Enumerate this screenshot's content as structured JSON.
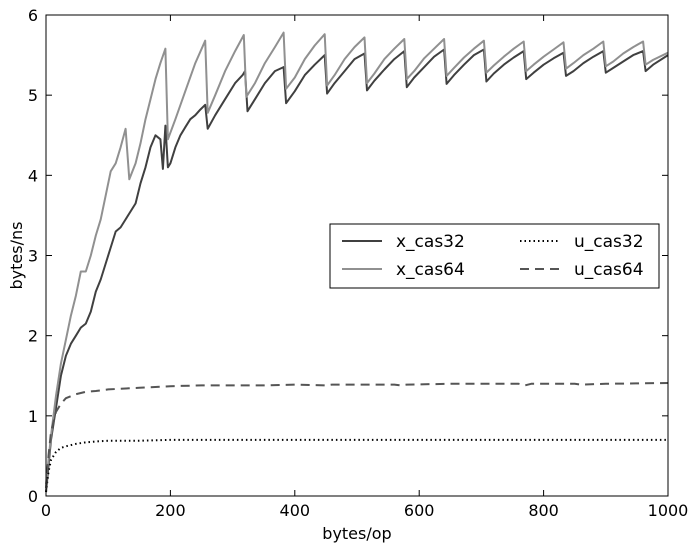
{
  "chart_data": {
    "type": "line",
    "title": "",
    "xlabel": "bytes/op",
    "ylabel": "bytes/ns",
    "xlim": [
      0,
      1000
    ],
    "ylim": [
      0,
      6
    ],
    "x_ticks": [
      "0",
      "200",
      "400",
      "600",
      "800",
      "1000"
    ],
    "y_ticks": [
      "0",
      "1",
      "2",
      "3",
      "4",
      "5",
      "6"
    ],
    "grid": false,
    "legend": {
      "placement": "center-right",
      "columns": 2
    },
    "series": [
      {
        "name": "x_cas32",
        "color": "#404040",
        "style": "solid",
        "points": [
          [
            0,
            0.05
          ],
          [
            8,
            0.7
          ],
          [
            16,
            1.1
          ],
          [
            24,
            1.5
          ],
          [
            32,
            1.75
          ],
          [
            40,
            1.9
          ],
          [
            48,
            2.0
          ],
          [
            56,
            2.1
          ],
          [
            64,
            2.15
          ],
          [
            72,
            2.3
          ],
          [
            80,
            2.55
          ],
          [
            88,
            2.7
          ],
          [
            96,
            2.9
          ],
          [
            104,
            3.1
          ],
          [
            112,
            3.3
          ],
          [
            120,
            3.35
          ],
          [
            128,
            3.45
          ],
          [
            136,
            3.55
          ],
          [
            144,
            3.65
          ],
          [
            152,
            3.9
          ],
          [
            160,
            4.1
          ],
          [
            168,
            4.35
          ],
          [
            176,
            4.5
          ],
          [
            184,
            4.45
          ],
          [
            188,
            4.08
          ],
          [
            192,
            4.62
          ],
          [
            196,
            4.1
          ],
          [
            200,
            4.15
          ],
          [
            208,
            4.35
          ],
          [
            216,
            4.5
          ],
          [
            224,
            4.6
          ],
          [
            232,
            4.7
          ],
          [
            240,
            4.75
          ],
          [
            248,
            4.82
          ],
          [
            256,
            4.88
          ],
          [
            260,
            4.58
          ],
          [
            272,
            4.75
          ],
          [
            288,
            4.95
          ],
          [
            304,
            5.15
          ],
          [
            316,
            5.25
          ],
          [
            320,
            5.3
          ],
          [
            324,
            4.8
          ],
          [
            336,
            4.95
          ],
          [
            352,
            5.15
          ],
          [
            368,
            5.3
          ],
          [
            382,
            5.35
          ],
          [
            386,
            4.9
          ],
          [
            400,
            5.05
          ],
          [
            416,
            5.25
          ],
          [
            432,
            5.38
          ],
          [
            448,
            5.5
          ],
          [
            452,
            5.02
          ],
          [
            464,
            5.15
          ],
          [
            480,
            5.3
          ],
          [
            496,
            5.45
          ],
          [
            512,
            5.52
          ],
          [
            516,
            5.06
          ],
          [
            528,
            5.18
          ],
          [
            544,
            5.32
          ],
          [
            560,
            5.45
          ],
          [
            576,
            5.55
          ],
          [
            580,
            5.1
          ],
          [
            592,
            5.22
          ],
          [
            608,
            5.35
          ],
          [
            624,
            5.48
          ],
          [
            640,
            5.57
          ],
          [
            644,
            5.14
          ],
          [
            656,
            5.25
          ],
          [
            672,
            5.38
          ],
          [
            688,
            5.5
          ],
          [
            704,
            5.57
          ],
          [
            708,
            5.17
          ],
          [
            720,
            5.27
          ],
          [
            736,
            5.38
          ],
          [
            752,
            5.47
          ],
          [
            768,
            5.55
          ],
          [
            772,
            5.2
          ],
          [
            784,
            5.28
          ],
          [
            800,
            5.38
          ],
          [
            816,
            5.46
          ],
          [
            832,
            5.53
          ],
          [
            836,
            5.24
          ],
          [
            848,
            5.3
          ],
          [
            864,
            5.4
          ],
          [
            880,
            5.48
          ],
          [
            896,
            5.55
          ],
          [
            900,
            5.28
          ],
          [
            912,
            5.34
          ],
          [
            928,
            5.42
          ],
          [
            944,
            5.5
          ],
          [
            960,
            5.55
          ],
          [
            964,
            5.3
          ],
          [
            976,
            5.38
          ],
          [
            1000,
            5.5
          ]
        ]
      },
      {
        "name": "x_cas64",
        "color": "#909090",
        "style": "solid",
        "points": [
          [
            0,
            0.15
          ],
          [
            8,
            0.75
          ],
          [
            16,
            1.25
          ],
          [
            24,
            1.65
          ],
          [
            32,
            1.95
          ],
          [
            40,
            2.25
          ],
          [
            48,
            2.5
          ],
          [
            56,
            2.8
          ],
          [
            64,
            2.8
          ],
          [
            72,
            3.0
          ],
          [
            80,
            3.25
          ],
          [
            88,
            3.45
          ],
          [
            96,
            3.75
          ],
          [
            104,
            4.05
          ],
          [
            112,
            4.15
          ],
          [
            120,
            4.35
          ],
          [
            128,
            4.58
          ],
          [
            134,
            3.95
          ],
          [
            144,
            4.15
          ],
          [
            152,
            4.4
          ],
          [
            160,
            4.7
          ],
          [
            168,
            4.95
          ],
          [
            176,
            5.2
          ],
          [
            184,
            5.4
          ],
          [
            192,
            5.58
          ],
          [
            196,
            4.45
          ],
          [
            208,
            4.7
          ],
          [
            224,
            5.05
          ],
          [
            240,
            5.4
          ],
          [
            256,
            5.68
          ],
          [
            260,
            4.78
          ],
          [
            272,
            5.0
          ],
          [
            288,
            5.3
          ],
          [
            304,
            5.55
          ],
          [
            318,
            5.75
          ],
          [
            322,
            4.98
          ],
          [
            336,
            5.15
          ],
          [
            352,
            5.4
          ],
          [
            368,
            5.6
          ],
          [
            382,
            5.78
          ],
          [
            386,
            5.08
          ],
          [
            400,
            5.22
          ],
          [
            416,
            5.45
          ],
          [
            432,
            5.62
          ],
          [
            448,
            5.76
          ],
          [
            452,
            5.12
          ],
          [
            464,
            5.25
          ],
          [
            480,
            5.45
          ],
          [
            496,
            5.6
          ],
          [
            512,
            5.72
          ],
          [
            516,
            5.15
          ],
          [
            528,
            5.27
          ],
          [
            544,
            5.45
          ],
          [
            560,
            5.58
          ],
          [
            576,
            5.7
          ],
          [
            580,
            5.2
          ],
          [
            592,
            5.3
          ],
          [
            608,
            5.46
          ],
          [
            624,
            5.58
          ],
          [
            640,
            5.7
          ],
          [
            644,
            5.24
          ],
          [
            656,
            5.34
          ],
          [
            672,
            5.47
          ],
          [
            688,
            5.58
          ],
          [
            704,
            5.68
          ],
          [
            708,
            5.28
          ],
          [
            720,
            5.37
          ],
          [
            736,
            5.48
          ],
          [
            752,
            5.58
          ],
          [
            768,
            5.67
          ],
          [
            772,
            5.3
          ],
          [
            784,
            5.38
          ],
          [
            800,
            5.48
          ],
          [
            816,
            5.57
          ],
          [
            832,
            5.66
          ],
          [
            836,
            5.33
          ],
          [
            848,
            5.4
          ],
          [
            864,
            5.5
          ],
          [
            880,
            5.58
          ],
          [
            896,
            5.67
          ],
          [
            900,
            5.36
          ],
          [
            912,
            5.42
          ],
          [
            928,
            5.52
          ],
          [
            944,
            5.6
          ],
          [
            960,
            5.67
          ],
          [
            964,
            5.38
          ],
          [
            976,
            5.44
          ],
          [
            1000,
            5.53
          ]
        ]
      },
      {
        "name": "u_cas32",
        "color": "#000000",
        "style": "dotted",
        "points": [
          [
            0,
            0.05
          ],
          [
            4,
            0.3
          ],
          [
            8,
            0.45
          ],
          [
            16,
            0.55
          ],
          [
            24,
            0.6
          ],
          [
            32,
            0.62
          ],
          [
            48,
            0.65
          ],
          [
            64,
            0.67
          ],
          [
            80,
            0.68
          ],
          [
            100,
            0.69
          ],
          [
            150,
            0.69
          ],
          [
            200,
            0.7
          ],
          [
            300,
            0.7
          ],
          [
            400,
            0.7
          ],
          [
            500,
            0.7
          ],
          [
            600,
            0.7
          ],
          [
            700,
            0.7
          ],
          [
            800,
            0.7
          ],
          [
            900,
            0.7
          ],
          [
            1000,
            0.7
          ]
        ]
      },
      {
        "name": "u_cas64",
        "color": "#555555",
        "style": "dashed",
        "points": [
          [
            0,
            0.1
          ],
          [
            4,
            0.5
          ],
          [
            8,
            0.8
          ],
          [
            16,
            1.05
          ],
          [
            24,
            1.15
          ],
          [
            32,
            1.22
          ],
          [
            48,
            1.27
          ],
          [
            64,
            1.3
          ],
          [
            80,
            1.31
          ],
          [
            100,
            1.33
          ],
          [
            150,
            1.35
          ],
          [
            200,
            1.37
          ],
          [
            250,
            1.38
          ],
          [
            300,
            1.38
          ],
          [
            350,
            1.38
          ],
          [
            400,
            1.39
          ],
          [
            450,
            1.38
          ],
          [
            460,
            1.39
          ],
          [
            500,
            1.39
          ],
          [
            560,
            1.39
          ],
          [
            570,
            1.38
          ],
          [
            580,
            1.39
          ],
          [
            650,
            1.4
          ],
          [
            700,
            1.4
          ],
          [
            760,
            1.4
          ],
          [
            770,
            1.38
          ],
          [
            780,
            1.4
          ],
          [
            850,
            1.4
          ],
          [
            860,
            1.39
          ],
          [
            900,
            1.4
          ],
          [
            1000,
            1.41
          ]
        ]
      }
    ]
  }
}
